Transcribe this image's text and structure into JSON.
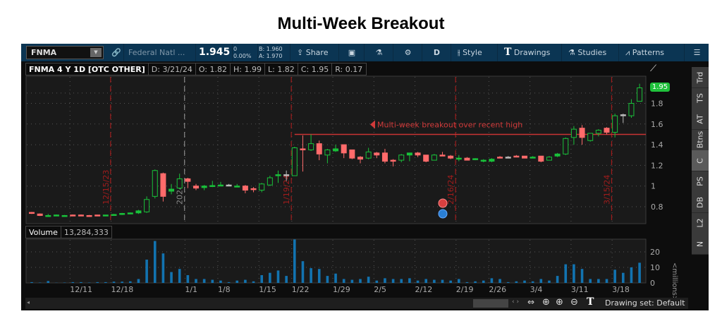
{
  "page_title": "Multi-Week Breakout",
  "toolbar": {
    "symbol": "FNMA",
    "company": "Federal Natl ...",
    "last": "1.945",
    "change": "0",
    "change_pct": "0.00%",
    "bid": "B: 1.960",
    "ask": "A: 1.970",
    "share": "Share",
    "period": "D",
    "style": "Style",
    "drawings": "Drawings",
    "studies": "Studies",
    "patterns": "Patterns"
  },
  "infobar": {
    "chart_label": "FNMA 4 Y 1D [OTC OTHER]",
    "date": "D: 3/21/24",
    "open": "O: 1.82",
    "high": "H: 1.99",
    "low": "L: 1.82",
    "close": "C: 1.95",
    "range": "R: 0.17"
  },
  "volume_header": {
    "label": "Volume",
    "value": "13,284,333"
  },
  "price_badge": "1.95",
  "volume_unit": "<millions>",
  "annotation": {
    "text": "Multi-week breakout over recent high",
    "level": 1.5
  },
  "side_tabs": [
    "Trd",
    "TS",
    "AT",
    "Btns",
    "C",
    "PS",
    "DB",
    "L2",
    "N"
  ],
  "selected_side_tab": "C",
  "footer": {
    "drawing_set": "Drawing set: Default"
  },
  "colors": {
    "up": "#19c13a",
    "down": "#ff6b6b",
    "volume": "#1273b0",
    "marker": "#a01c1c",
    "toolbar": "#0b3553"
  },
  "chart_data": {
    "type": "candlestick",
    "price_axis": {
      "ticks": [
        "0.8",
        "1",
        "1.2",
        "1.4",
        "1.6",
        "1.8"
      ],
      "values": [
        0.8,
        1,
        1.2,
        1.4,
        1.6,
        1.8
      ]
    },
    "volume_axis": {
      "ticks": [
        "0",
        "10",
        "20"
      ],
      "values": [
        0,
        10,
        20
      ],
      "unit": "millions"
    },
    "x_ticks": [
      {
        "label": "12/11",
        "i": 5
      },
      {
        "label": "12/18",
        "i": 10
      },
      {
        "label": "1/1",
        "i": 19
      },
      {
        "label": "1/8",
        "i": 23
      },
      {
        "label": "1/15",
        "i": 28
      },
      {
        "label": "1/22",
        "i": 32
      },
      {
        "label": "1/29",
        "i": 37
      },
      {
        "label": "2/5",
        "i": 42
      },
      {
        "label": "2/12",
        "i": 47
      },
      {
        "label": "2/19",
        "i": 52
      },
      {
        "label": "2/26",
        "i": 56
      },
      {
        "label": "3/4",
        "i": 61
      },
      {
        "label": "3/11",
        "i": 66
      },
      {
        "label": "3/18",
        "i": 71
      }
    ],
    "markers": [
      {
        "label": "12/15/23",
        "i": 9,
        "color": "#a01c1c"
      },
      {
        "label": "2024",
        "i": 18,
        "color": "#888888"
      },
      {
        "label": "1/19/24",
        "i": 31,
        "color": "#a01c1c"
      },
      {
        "label": "2/16/24",
        "i": 51,
        "color": "#a01c1c"
      },
      {
        "label": "3/15/24",
        "i": 70,
        "color": "#a01c1c"
      }
    ],
    "candles": [
      [
        0.745,
        0.75,
        0.73,
        0.735,
        0.5
      ],
      [
        0.73,
        0.735,
        0.71,
        0.715,
        0.2
      ],
      [
        0.71,
        0.73,
        0.705,
        0.715,
        1.2
      ],
      [
        0.715,
        0.725,
        0.71,
        0.72,
        0.1
      ],
      [
        0.71,
        0.72,
        0.705,
        0.715,
        0.2
      ],
      [
        0.72,
        0.725,
        0.71,
        0.71,
        0.5
      ],
      [
        0.72,
        0.725,
        0.71,
        0.715,
        0.5
      ],
      [
        0.715,
        0.72,
        0.71,
        0.71,
        0.2
      ],
      [
        0.72,
        0.72,
        0.71,
        0.715,
        0.5
      ],
      [
        0.715,
        0.72,
        0.71,
        0.72,
        0.5
      ],
      [
        0.72,
        0.73,
        0.715,
        0.725,
        0.8
      ],
      [
        0.725,
        0.74,
        0.72,
        0.735,
        0.8
      ],
      [
        0.735,
        0.745,
        0.73,
        0.74,
        1
      ],
      [
        0.74,
        0.77,
        0.73,
        0.76,
        2.5
      ],
      [
        0.75,
        0.9,
        0.74,
        0.87,
        15
      ],
      [
        0.9,
        1.16,
        0.88,
        1.15,
        27
      ],
      [
        1.12,
        1.13,
        0.85,
        0.9,
        19
      ],
      [
        0.95,
        1.02,
        0.92,
        0.97,
        7
      ],
      [
        0.98,
        1.12,
        0.97,
        1.07,
        9
      ],
      [
        1.07,
        1.08,
        0.98,
        1.045,
        5
      ],
      [
        1.0,
        1.02,
        0.96,
        0.98,
        2.5
      ],
      [
        0.985,
        1.01,
        0.96,
        1.0,
        2.5
      ],
      [
        1.0,
        1.05,
        0.99,
        1.005,
        2
      ],
      [
        1.005,
        1.04,
        1.0,
        1.01,
        1.5
      ],
      [
        1.01,
        1.02,
        1.0,
        1.01,
        0.5
      ],
      [
        0.995,
        1.02,
        0.99,
        1.0,
        1.5
      ],
      [
        1.0,
        1.01,
        0.93,
        0.96,
        2
      ],
      [
        0.975,
        0.99,
        0.94,
        0.97,
        1
      ],
      [
        0.96,
        1.03,
        0.94,
        1.02,
        5
      ],
      [
        1.01,
        1.1,
        1.0,
        1.08,
        6.5
      ],
      [
        1.1,
        1.15,
        1.03,
        1.11,
        8
      ],
      [
        1.11,
        1.15,
        1.05,
        1.11,
        4.5
      ],
      [
        1.1,
        1.38,
        1.1,
        1.37,
        28
      ],
      [
        1.36,
        1.49,
        1.14,
        1.35,
        14
      ],
      [
        1.35,
        1.5,
        1.34,
        1.41,
        9.5
      ],
      [
        1.41,
        1.44,
        1.25,
        1.31,
        9
      ],
      [
        1.3,
        1.36,
        1.22,
        1.35,
        4.5
      ],
      [
        1.34,
        1.4,
        1.33,
        1.36,
        6
      ],
      [
        1.4,
        1.4,
        1.27,
        1.32,
        2.5
      ],
      [
        1.35,
        1.35,
        1.26,
        1.27,
        2
      ],
      [
        1.28,
        1.29,
        1.22,
        1.26,
        2.5
      ],
      [
        1.27,
        1.37,
        1.26,
        1.33,
        4
      ],
      [
        1.32,
        1.33,
        1.27,
        1.3,
        1.5
      ],
      [
        1.32,
        1.36,
        1.22,
        1.24,
        3
      ],
      [
        1.25,
        1.26,
        1.19,
        1.245,
        2.5
      ],
      [
        1.25,
        1.31,
        1.23,
        1.3,
        2.5
      ],
      [
        1.3,
        1.32,
        1.24,
        1.32,
        3
      ],
      [
        1.32,
        1.33,
        1.28,
        1.3,
        1.5
      ],
      [
        1.3,
        1.3,
        1.23,
        1.24,
        2.5
      ],
      [
        1.25,
        1.31,
        1.25,
        1.3,
        2
      ],
      [
        1.3,
        1.33,
        1.29,
        1.295,
        2
      ],
      [
        1.29,
        1.3,
        1.26,
        1.27,
        1.5
      ],
      [
        1.265,
        1.3,
        1.24,
        1.27,
        2.5
      ],
      [
        1.27,
        1.28,
        1.25,
        1.25,
        0.5
      ],
      [
        1.255,
        1.27,
        1.25,
        1.265,
        1
      ],
      [
        1.24,
        1.26,
        1.23,
        1.25,
        1.5
      ],
      [
        1.24,
        1.27,
        1.23,
        1.26,
        3
      ],
      [
        1.28,
        1.29,
        1.27,
        1.275,
        2.5
      ],
      [
        1.28,
        1.29,
        1.27,
        1.28,
        0.5
      ],
      [
        1.29,
        1.3,
        1.28,
        1.28,
        1
      ],
      [
        1.29,
        1.29,
        1.27,
        1.27,
        1.5
      ],
      [
        1.275,
        1.29,
        1.27,
        1.28,
        1
      ],
      [
        1.29,
        1.29,
        1.23,
        1.24,
        2.5
      ],
      [
        1.25,
        1.29,
        1.25,
        1.28,
        1.5
      ],
      [
        1.29,
        1.32,
        1.28,
        1.31,
        4.5
      ],
      [
        1.31,
        1.47,
        1.3,
        1.46,
        12
      ],
      [
        1.47,
        1.58,
        1.4,
        1.55,
        12
      ],
      [
        1.56,
        1.59,
        1.4,
        1.47,
        9
      ],
      [
        1.44,
        1.51,
        1.43,
        1.51,
        2.5
      ],
      [
        1.51,
        1.55,
        1.48,
        1.54,
        2.5
      ],
      [
        1.56,
        1.57,
        1.5,
        1.52,
        2.5
      ],
      [
        1.52,
        1.7,
        1.47,
        1.68,
        8.5
      ],
      [
        1.69,
        1.7,
        1.61,
        1.69,
        6.5
      ],
      [
        1.68,
        1.84,
        1.66,
        1.8,
        10
      ],
      [
        1.82,
        1.99,
        1.82,
        1.95,
        13
      ]
    ]
  }
}
